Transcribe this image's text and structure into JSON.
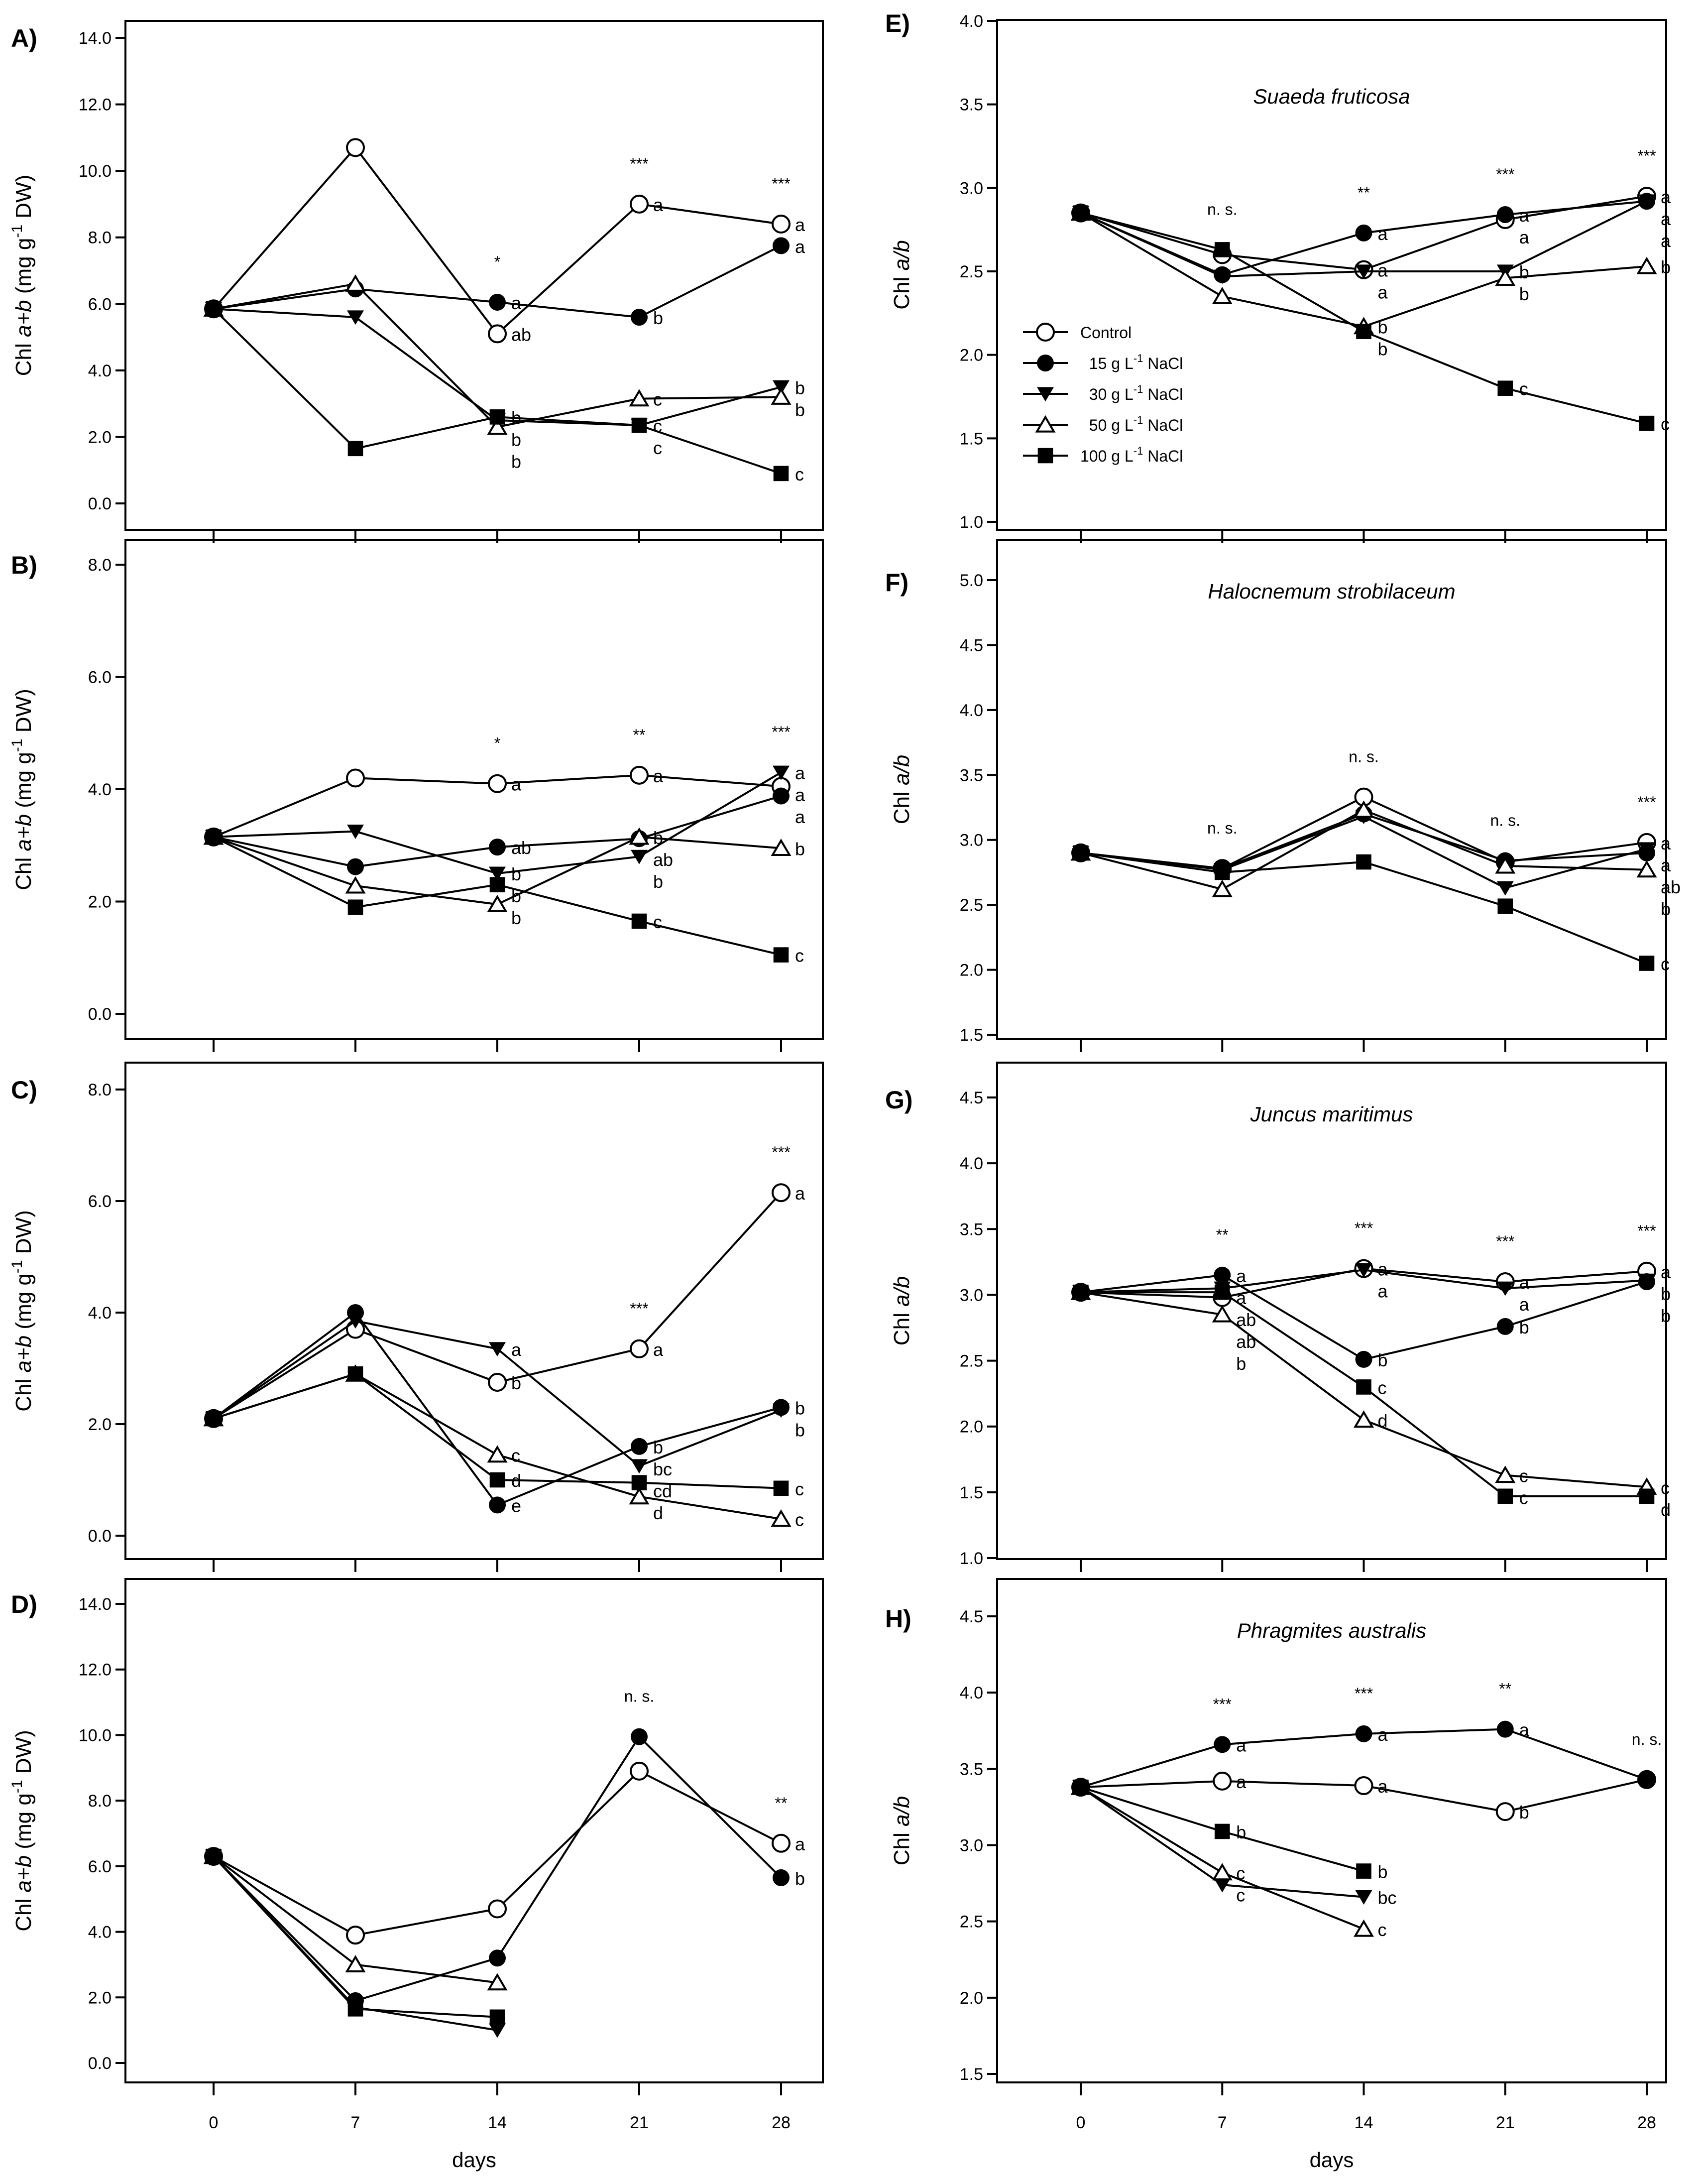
{
  "x_tick_labels": [
    "0",
    "7",
    "14",
    "21",
    "28"
  ],
  "x_label": "days",
  "legend": [
    {
      "pre": "Control",
      "sup": "",
      "post": ""
    },
    {
      "pre": "  15 g L",
      "sup": "-1",
      "post": " NaCl"
    },
    {
      "pre": "  30 g L",
      "sup": "-1",
      "post": " NaCl"
    },
    {
      "pre": "  50 g L",
      "sup": "-1",
      "post": " NaCl"
    },
    {
      "pre": "100 g L",
      "sup": "-1",
      "post": " NaCl"
    }
  ],
  "ylabel_ab": {
    "pre": "Chl ",
    "it": "a+b",
    "mid": " (mg g",
    "sup": "-1",
    "post": " DW)"
  },
  "ylabel_ratio": {
    "pre": "Chl ",
    "it": "a/b"
  },
  "chart_data": [
    {
      "type": "line",
      "panel": "A)",
      "title": "",
      "xlabel": "days",
      "ylabel": "Chl a+b (mg g-1 DW)",
      "x": [
        0,
        7,
        14,
        21,
        28
      ],
      "ylim": [
        0,
        14
      ],
      "yticks": [
        "0.0",
        "2.0",
        "4.0",
        "6.0",
        "8.0",
        "10.0",
        "12.0",
        "14.0"
      ],
      "sig": [
        null,
        null,
        "*",
        "***",
        "***"
      ],
      "series": [
        {
          "name": "Control",
          "values": [
            5.85,
            10.7,
            5.1,
            9.0,
            8.4
          ],
          "letters": [
            null,
            null,
            "ab",
            "a",
            "a"
          ]
        },
        {
          "name": "15 g L-1 NaCl",
          "values": [
            5.85,
            6.45,
            6.05,
            5.6,
            7.75
          ],
          "letters": [
            null,
            null,
            "a",
            "b",
            "a"
          ]
        },
        {
          "name": "30 g L-1 NaCl",
          "values": [
            5.85,
            5.6,
            2.5,
            2.35,
            3.5
          ],
          "letters": [
            null,
            null,
            "b",
            "c",
            "b"
          ]
        },
        {
          "name": "50 g L-1 NaCl",
          "values": [
            5.85,
            6.6,
            2.3,
            3.15,
            3.2
          ],
          "letters": [
            null,
            null,
            "b",
            "c",
            "b"
          ]
        },
        {
          "name": "100 g L-1 NaCl",
          "values": [
            5.85,
            1.65,
            2.6,
            2.35,
            0.9
          ],
          "letters": [
            null,
            null,
            "b",
            "c",
            "c"
          ]
        }
      ]
    },
    {
      "type": "line",
      "panel": "B)",
      "title": "",
      "xlabel": "days",
      "ylabel": "Chl a+b (mg g-1 DW)",
      "x": [
        0,
        7,
        14,
        21,
        28
      ],
      "ylim": [
        0,
        8
      ],
      "yticks": [
        "0.0",
        "2.0",
        "4.0",
        "6.0",
        "8.0"
      ],
      "sig": [
        null,
        null,
        "*",
        "**",
        "***"
      ],
      "series": [
        {
          "name": "Control",
          "values": [
            3.15,
            4.2,
            4.1,
            4.25,
            4.05
          ],
          "letters": [
            null,
            null,
            "a",
            "a",
            "a"
          ]
        },
        {
          "name": "15 g L-1 NaCl",
          "values": [
            3.15,
            2.62,
            2.97,
            3.12,
            3.88
          ],
          "letters": [
            null,
            null,
            "ab",
            "ab",
            "a"
          ]
        },
        {
          "name": "30 g L-1 NaCl",
          "values": [
            3.15,
            3.25,
            2.5,
            2.8,
            4.3
          ],
          "letters": [
            null,
            null,
            "b",
            "b",
            "a"
          ]
        },
        {
          "name": "50 g L-1 NaCl",
          "values": [
            3.15,
            2.28,
            1.95,
            3.15,
            2.95
          ],
          "letters": [
            null,
            null,
            "b",
            "b",
            "b"
          ]
        },
        {
          "name": "100 g L-1 NaCl",
          "values": [
            3.15,
            1.9,
            2.3,
            1.65,
            1.05
          ],
          "letters": [
            null,
            null,
            "b",
            "c",
            "c"
          ]
        }
      ]
    },
    {
      "type": "line",
      "panel": "C)",
      "title": "",
      "xlabel": "days",
      "ylabel": "Chl a+b (mg g-1 DW)",
      "x": [
        0,
        7,
        14,
        21,
        28
      ],
      "ylim": [
        0,
        8
      ],
      "yticks": [
        "0.0",
        "2.0",
        "4.0",
        "6.0",
        "8.0"
      ],
      "sig": [
        null,
        null,
        null,
        "***",
        "***"
      ],
      "series": [
        {
          "name": "Control",
          "values": [
            2.1,
            3.7,
            2.75,
            3.35,
            6.15
          ],
          "letters": [
            null,
            null,
            "b",
            "a",
            "a"
          ]
        },
        {
          "name": "15 g L-1 NaCl",
          "values": [
            2.1,
            4.0,
            0.55,
            1.6,
            2.3
          ],
          "letters": [
            null,
            null,
            "e",
            "b",
            "b"
          ]
        },
        {
          "name": "30 g L-1 NaCl",
          "values": [
            2.1,
            3.85,
            3.35,
            1.25,
            2.25
          ],
          "letters": [
            null,
            null,
            "a",
            "bc",
            "b"
          ]
        },
        {
          "name": "50 g L-1 NaCl",
          "values": [
            2.1,
            2.9,
            1.45,
            0.7,
            0.3
          ],
          "letters": [
            null,
            null,
            "c",
            "d",
            "c"
          ]
        },
        {
          "name": "100 g L-1 NaCl",
          "values": [
            2.1,
            2.9,
            1.0,
            0.95,
            0.85
          ],
          "letters": [
            null,
            null,
            "d",
            "cd",
            "c"
          ]
        }
      ]
    },
    {
      "type": "line",
      "panel": "D)",
      "title": "",
      "xlabel": "days",
      "ylabel": "Chl a+b (mg g-1 DW)",
      "x": [
        0,
        7,
        14,
        21,
        28
      ],
      "ylim": [
        0,
        14
      ],
      "yticks": [
        "0.0",
        "2.0",
        "4.0",
        "6.0",
        "8.0",
        "10.0",
        "12.0",
        "14.0"
      ],
      "sig": [
        null,
        null,
        null,
        "n. s.",
        "**"
      ],
      "series": [
        {
          "name": "Control",
          "values": [
            6.3,
            3.9,
            4.7,
            8.9,
            6.7
          ],
          "letters": [
            null,
            null,
            null,
            null,
            "a"
          ]
        },
        {
          "name": "15 g L-1 NaCl",
          "values": [
            6.3,
            1.9,
            3.2,
            9.95,
            5.65
          ],
          "letters": [
            null,
            null,
            null,
            null,
            "b"
          ]
        },
        {
          "name": "30 g L-1 NaCl",
          "values": [
            6.3,
            1.7,
            1.0,
            null,
            null
          ],
          "letters": [
            null,
            null,
            null,
            null,
            null
          ]
        },
        {
          "name": "50 g L-1 NaCl",
          "values": [
            6.3,
            3.0,
            2.45,
            null,
            null
          ],
          "letters": [
            null,
            null,
            null,
            null,
            null
          ]
        },
        {
          "name": "100 g L-1 NaCl",
          "values": [
            6.3,
            1.65,
            1.4,
            null,
            null
          ],
          "letters": [
            null,
            null,
            null,
            null,
            null
          ]
        }
      ]
    },
    {
      "type": "line",
      "panel": "E)",
      "title": "Suaeda fruticosa",
      "xlabel": "days",
      "ylabel": "Chl a/b",
      "x": [
        0,
        7,
        14,
        21,
        28
      ],
      "ylim": [
        1,
        4
      ],
      "yticks": [
        "1.0",
        "1.5",
        "2.0",
        "2.5",
        "3.0",
        "3.5",
        "4.0"
      ],
      "legend": "left-middle",
      "sig": [
        null,
        "n. s.",
        "**",
        "***",
        "***"
      ],
      "series": [
        {
          "name": "Control",
          "values": [
            2.85,
            2.6,
            2.51,
            2.81,
            2.95
          ],
          "letters": [
            null,
            null,
            "a",
            "a",
            "a"
          ]
        },
        {
          "name": "15 g L-1 NaCl",
          "values": [
            2.85,
            2.48,
            2.73,
            2.84,
            2.92
          ],
          "letters": [
            null,
            null,
            "a",
            "a",
            "a"
          ]
        },
        {
          "name": "30 g L-1 NaCl",
          "values": [
            2.85,
            2.47,
            2.5,
            2.5,
            2.92
          ],
          "letters": [
            null,
            null,
            "a",
            "b",
            "a"
          ]
        },
        {
          "name": "50 g L-1 NaCl",
          "values": [
            2.85,
            2.35,
            2.17,
            2.46,
            2.53
          ],
          "letters": [
            null,
            null,
            "b",
            "b",
            "b"
          ]
        },
        {
          "name": "100 g L-1 NaCl",
          "values": [
            2.85,
            2.63,
            2.14,
            1.8,
            1.59
          ],
          "letters": [
            null,
            null,
            "b",
            "c",
            "c"
          ]
        }
      ]
    },
    {
      "type": "line",
      "panel": "F)",
      "title": "Halocnemum strobilaceum",
      "xlabel": "days",
      "ylabel": "Chl a/b",
      "x": [
        0,
        7,
        14,
        21,
        28
      ],
      "ylim": [
        1.5,
        5
      ],
      "yticks": [
        "1.5",
        "2.0",
        "2.5",
        "3.0",
        "3.5",
        "4.0",
        "4.5",
        "5.0"
      ],
      "sig": [
        null,
        "n. s.",
        "n. s.",
        "n. s.",
        "***"
      ],
      "series": [
        {
          "name": "Control",
          "values": [
            2.9,
            2.78,
            3.33,
            2.83,
            2.98
          ],
          "letters": [
            null,
            null,
            null,
            null,
            "a"
          ]
        },
        {
          "name": "15 g L-1 NaCl",
          "values": [
            2.9,
            2.78,
            3.2,
            2.84,
            2.9
          ],
          "letters": [
            null,
            null,
            null,
            null,
            "ab"
          ]
        },
        {
          "name": "30 g L-1 NaCl",
          "values": [
            2.9,
            2.77,
            3.18,
            2.63,
            2.93
          ],
          "letters": [
            null,
            null,
            null,
            null,
            "a"
          ]
        },
        {
          "name": "50 g L-1 NaCl",
          "values": [
            2.9,
            2.62,
            3.23,
            2.8,
            2.77
          ],
          "letters": [
            null,
            null,
            null,
            null,
            "b"
          ]
        },
        {
          "name": "100 g L-1 NaCl",
          "values": [
            2.9,
            2.75,
            2.83,
            2.49,
            2.05
          ],
          "letters": [
            null,
            null,
            null,
            null,
            "c"
          ]
        }
      ]
    },
    {
      "type": "line",
      "panel": "G)",
      "title": "Juncus maritimus",
      "xlabel": "days",
      "ylabel": "Chl a/b",
      "x": [
        0,
        7,
        14,
        21,
        28
      ],
      "ylim": [
        1,
        4.5
      ],
      "yticks": [
        "1.0",
        "1.5",
        "2.0",
        "2.5",
        "3.0",
        "3.5",
        "4.0",
        "4.5"
      ],
      "sig": [
        null,
        "**",
        "***",
        "***",
        "***"
      ],
      "series": [
        {
          "name": "Control",
          "values": [
            3.02,
            2.98,
            3.2,
            3.1,
            3.18
          ],
          "letters": [
            null,
            "ab",
            "a",
            "a",
            "a"
          ]
        },
        {
          "name": "15 g L-1 NaCl",
          "values": [
            3.02,
            3.15,
            2.51,
            2.76,
            3.1
          ],
          "letters": [
            null,
            "a",
            "b",
            "b",
            "b"
          ]
        },
        {
          "name": "30 g L-1 NaCl",
          "values": [
            3.02,
            3.05,
            3.19,
            3.05,
            3.11
          ],
          "letters": [
            null,
            "a",
            "a",
            "a",
            "b"
          ]
        },
        {
          "name": "50 g L-1 NaCl",
          "values": [
            3.02,
            2.85,
            2.05,
            1.63,
            1.54
          ],
          "letters": [
            null,
            "b",
            "d",
            "c",
            "c"
          ]
        },
        {
          "name": "100 g L-1 NaCl",
          "values": [
            3.02,
            3.02,
            2.3,
            1.47,
            1.47
          ],
          "letters": [
            null,
            "ab",
            "c",
            "c",
            "d"
          ]
        }
      ]
    },
    {
      "type": "line",
      "panel": "H)",
      "title": "Phragmites australis",
      "xlabel": "days",
      "ylabel": "Chl a/b",
      "x": [
        0,
        7,
        14,
        21,
        28
      ],
      "ylim": [
        1.5,
        4.5
      ],
      "yticks": [
        "1.5",
        "2.0",
        "2.5",
        "3.0",
        "3.5",
        "4.0",
        "4.5"
      ],
      "sig": [
        null,
        "***",
        "***",
        "**",
        "n. s."
      ],
      "series": [
        {
          "name": "Control",
          "values": [
            3.38,
            3.42,
            3.39,
            3.22,
            3.43
          ],
          "letters": [
            null,
            "a",
            "a",
            "b",
            null
          ]
        },
        {
          "name": "15 g L-1 NaCl",
          "values": [
            3.38,
            3.66,
            3.73,
            3.76,
            3.43
          ],
          "letters": [
            null,
            "a",
            "a",
            "a",
            null
          ]
        },
        {
          "name": "30 g L-1 NaCl",
          "values": [
            3.38,
            2.74,
            2.66,
            null,
            null
          ],
          "letters": [
            null,
            "c",
            "bc",
            null,
            null
          ]
        },
        {
          "name": "50 g L-1 NaCl",
          "values": [
            3.38,
            2.82,
            2.45,
            null,
            null
          ],
          "letters": [
            null,
            "c",
            "c",
            null,
            null
          ]
        },
        {
          "name": "100 g L-1 NaCl",
          "values": [
            3.38,
            3.09,
            2.83,
            null,
            null
          ],
          "letters": [
            null,
            "b",
            "b",
            null,
            null
          ]
        }
      ]
    }
  ]
}
